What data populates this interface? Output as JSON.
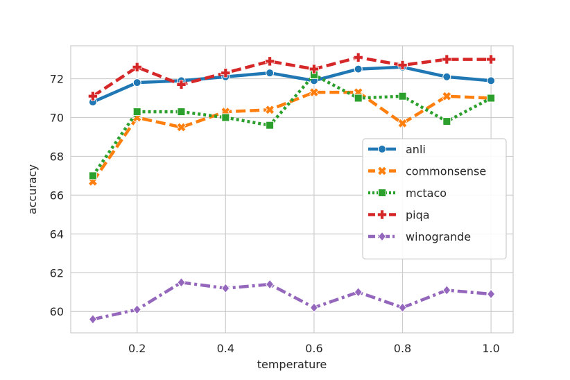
{
  "chart_data": {
    "type": "line",
    "title": "",
    "xlabel": "temperature",
    "ylabel": "accuracy",
    "xlim": [
      0.05,
      1.05
    ],
    "ylim": [
      58.9,
      73.7
    ],
    "x_ticks": [
      0.2,
      0.4,
      0.6,
      0.8,
      1.0
    ],
    "x_tick_labels": [
      "0.2",
      "0.4",
      "0.6",
      "0.8",
      "1.0"
    ],
    "y_ticks": [
      60,
      62,
      64,
      66,
      68,
      70,
      72
    ],
    "y_tick_labels": [
      "60",
      "62",
      "64",
      "66",
      "68",
      "70",
      "72"
    ],
    "grid": true,
    "legend_position": "center-right",
    "x": [
      0.1,
      0.2,
      0.3,
      0.4,
      0.5,
      0.6,
      0.7,
      0.8,
      0.9,
      1.0
    ],
    "series": [
      {
        "name": "anli",
        "color": "#1f77b4",
        "dash": "solid",
        "marker": "circle",
        "values": [
          70.8,
          71.8,
          71.9,
          72.1,
          72.3,
          71.9,
          72.5,
          72.6,
          72.1,
          71.9
        ]
      },
      {
        "name": "commonsense",
        "color": "#ff7f0e",
        "dash": "dashed",
        "marker": "x",
        "values": [
          66.7,
          70.0,
          69.5,
          70.3,
          70.4,
          71.3,
          71.3,
          69.7,
          71.1,
          71.0
        ]
      },
      {
        "name": "mctaco",
        "color": "#2ca02c",
        "dash": "dotted",
        "marker": "square",
        "values": [
          67.0,
          70.3,
          70.3,
          70.0,
          69.6,
          72.2,
          71.0,
          71.1,
          69.8,
          71.0
        ]
      },
      {
        "name": "piqa",
        "color": "#d62728",
        "dash": "dashed",
        "marker": "plus",
        "values": [
          71.1,
          72.6,
          71.7,
          72.3,
          72.9,
          72.5,
          73.1,
          72.7,
          73.0,
          73.0
        ]
      },
      {
        "name": "winogrande",
        "color": "#9467bd",
        "dash": "dashdot",
        "marker": "diamond",
        "values": [
          59.6,
          60.1,
          61.5,
          61.2,
          61.4,
          60.2,
          61.0,
          60.2,
          61.1,
          60.9
        ]
      }
    ]
  }
}
